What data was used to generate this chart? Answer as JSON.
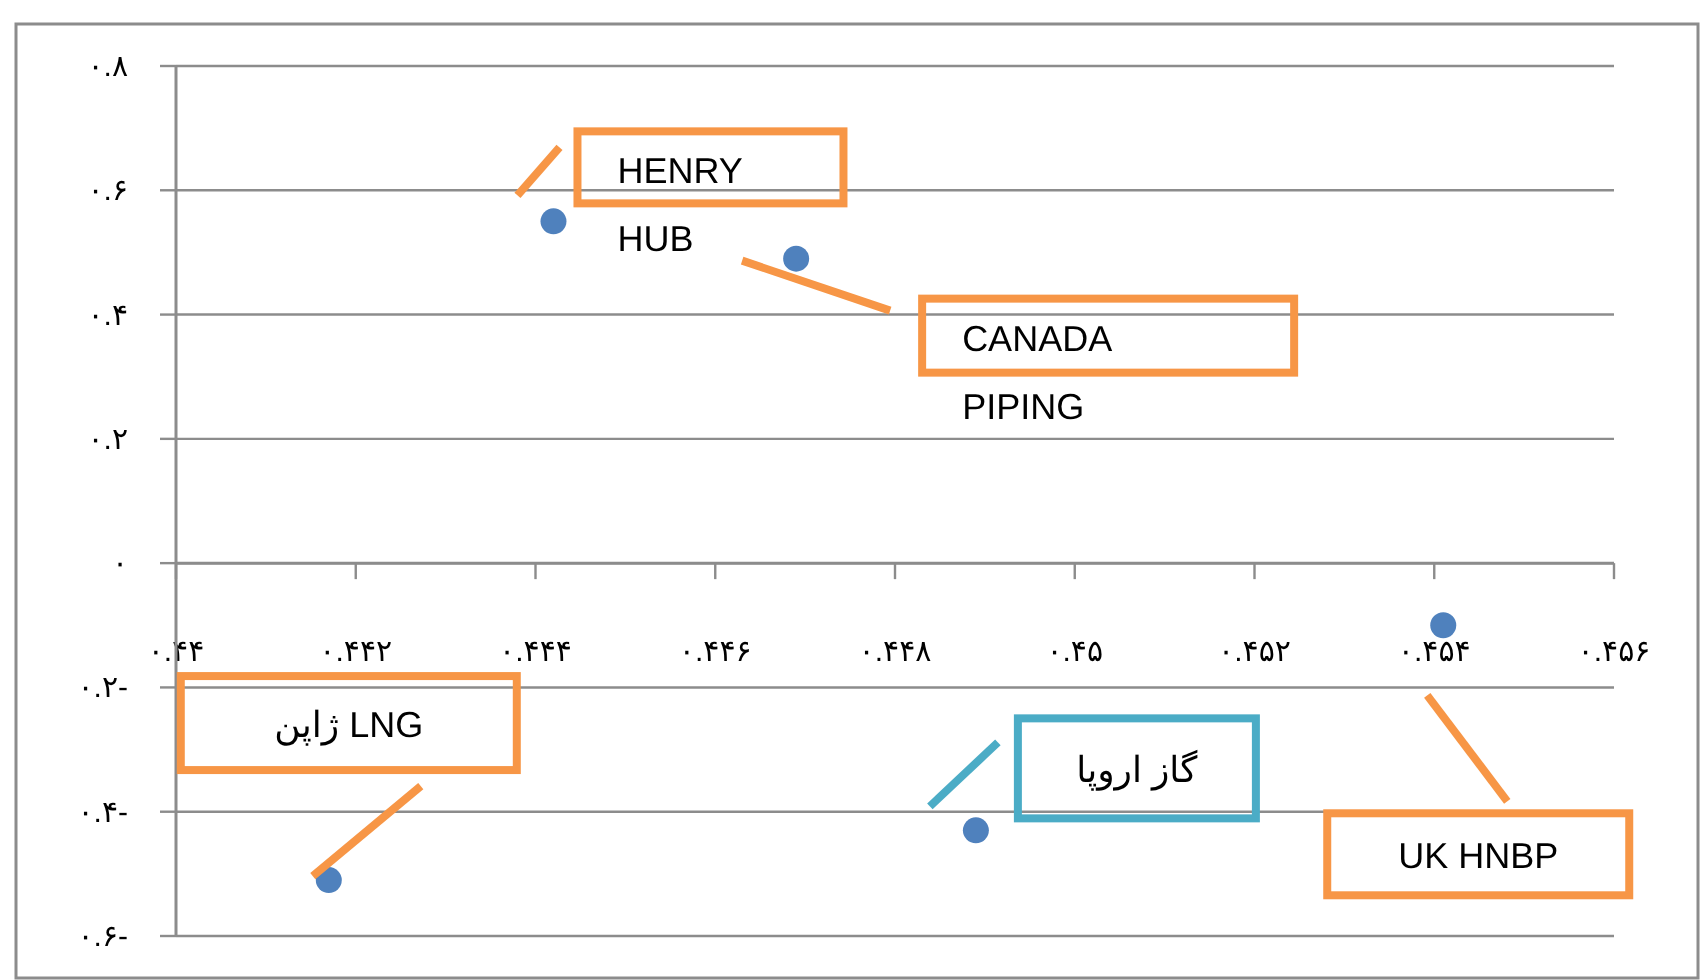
{
  "chart_data": {
    "type": "scatter",
    "x": [
      0.4442,
      0.4469,
      0.4417,
      0.4489,
      0.4541
    ],
    "series": [
      {
        "color": "#4f81bd",
        "values": [
          0.55,
          0.49,
          -0.51,
          -0.43,
          -0.1
        ]
      }
    ],
    "xlim": [
      0.44,
      0.456
    ],
    "xticks": [
      {
        "value": 0.44,
        "label": "۰.۴۴"
      },
      {
        "value": 0.442,
        "label": "۰.۴۴۲"
      },
      {
        "value": 0.444,
        "label": "۰.۴۴۴"
      },
      {
        "value": 0.446,
        "label": "۰.۴۴۶"
      },
      {
        "value": 0.448,
        "label": "۰.۴۴۸"
      },
      {
        "value": 0.45,
        "label": "۰.۴۵"
      },
      {
        "value": 0.452,
        "label": "۰.۴۵۲"
      },
      {
        "value": 0.454,
        "label": "۰.۴۵۴"
      },
      {
        "value": 0.456,
        "label": "۰.۴۵۶"
      }
    ],
    "ylim": [
      -0.6,
      0.8
    ],
    "yticks": [
      {
        "value": 0.8,
        "label": "۰.۸"
      },
      {
        "value": 0.6,
        "label": "۰.۶"
      },
      {
        "value": 0.4,
        "label": "۰.۴"
      },
      {
        "value": 0.2,
        "label": "۰.۲"
      },
      {
        "value": 0,
        "label": "۰"
      },
      {
        "value": -0.2,
        "label": "۰.۲-"
      },
      {
        "value": -0.4,
        "label": "۰.۴-"
      },
      {
        "value": -0.6,
        "label": "۰.۶-"
      }
    ],
    "grid": "y",
    "marker": "circle",
    "annotations": [
      {
        "text": "HENRY HUB",
        "x": 0.4442,
        "y": 0.55
      },
      "CANADA PIPING",
      {
        "text": "ژاپن LNG",
        "x": 0.4417,
        "y": -0.51
      },
      "گاز اروپا",
      "UK HNBP"
    ]
  }
}
